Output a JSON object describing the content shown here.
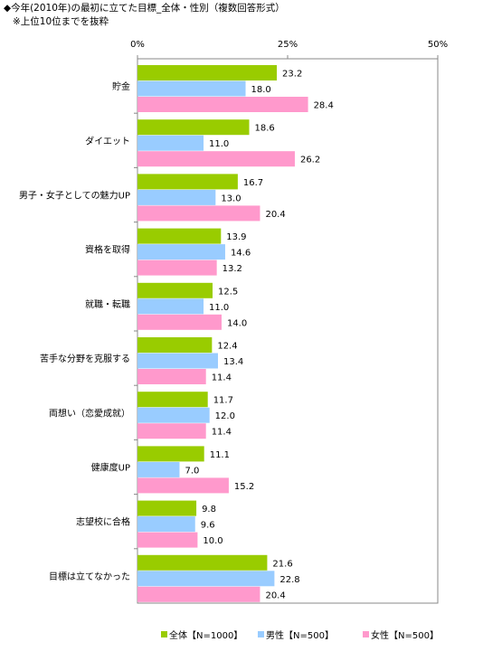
{
  "header": {
    "title": "◆今年(2010年)の最初に立てた目標_全体・性別（複数回答形式）",
    "subtitle": "※上位10位までを抜粋"
  },
  "colors": {
    "total": "#99cc00",
    "male": "#99ccff",
    "female": "#ff99cc"
  },
  "chart_data": {
    "type": "bar",
    "orientation": "horizontal",
    "title": "◆今年(2010年)の最初に立てた目標_全体・性別（複数回答形式）",
    "xlim": [
      0,
      50
    ],
    "x_ticks": [
      "0%",
      "25%",
      "50%"
    ],
    "grid": false,
    "legend_position": "bottom",
    "categories": [
      "貯金",
      "ダイエット",
      "男子・女子としての魅力UP",
      "資格を取得",
      "就職・転職",
      "苦手な分野を克服する",
      "両想い（恋愛成就）",
      "健康度UP",
      "志望校に合格",
      "目標は立てなかった"
    ],
    "series": [
      {
        "name": "全体【N=1000】",
        "values": [
          23.2,
          18.6,
          16.7,
          13.9,
          12.5,
          12.4,
          11.7,
          11.1,
          9.8,
          21.6
        ]
      },
      {
        "name": "男性【N=500】",
        "values": [
          18.0,
          11.0,
          13.0,
          14.6,
          11.0,
          13.4,
          12.0,
          7.0,
          9.6,
          22.8
        ]
      },
      {
        "name": "女性【N=500】",
        "values": [
          28.4,
          26.2,
          20.4,
          13.2,
          14.0,
          11.4,
          11.4,
          15.2,
          10.0,
          20.4
        ]
      }
    ]
  }
}
